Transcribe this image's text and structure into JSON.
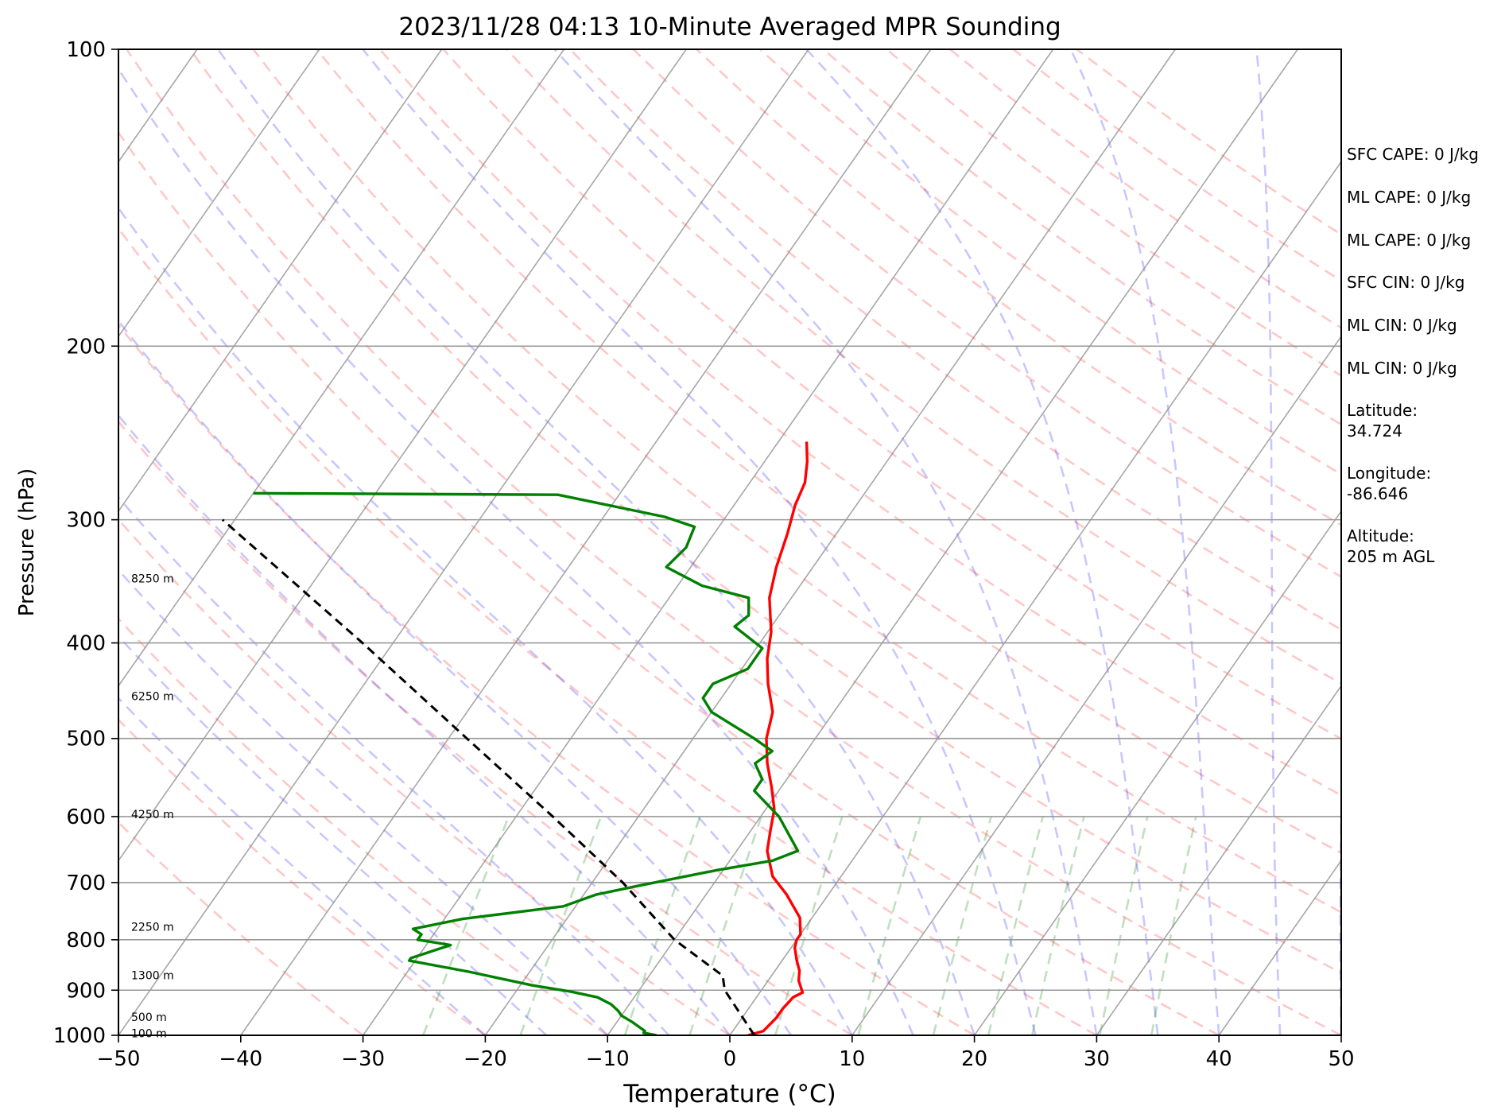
{
  "chart_data": {
    "type": "line",
    "title": "2023/11/28 04:13 10-Minute Averaged MPR Sounding",
    "xlabel": "Temperature (°C)",
    "ylabel": "Pressure (hPa)",
    "xlim": [
      -50,
      50
    ],
    "ylim": [
      1000,
      100
    ],
    "y_scale": "log",
    "x_ticks": [
      "−50",
      "−40",
      "−30",
      "−20",
      "−10",
      "0",
      "10",
      "20",
      "30",
      "40",
      "50"
    ],
    "y_ticks": [
      "100",
      "200",
      "300",
      "400",
      "500",
      "600",
      "700",
      "800",
      "900",
      "1000"
    ],
    "grid": true,
    "skew": true,
    "height_labels": [
      {
        "text": "8250 m",
        "p": 344
      },
      {
        "text": "6250 m",
        "p": 453
      },
      {
        "text": "4250 m",
        "p": 597
      },
      {
        "text": "2250 m",
        "p": 776
      },
      {
        "text": "1300 m",
        "p": 869
      },
      {
        "text": "500 m",
        "p": 958
      },
      {
        "text": "100 m",
        "p": 995
      }
    ],
    "series": [
      {
        "color": "#ff0000",
        "points": [
          [
            1000,
            1.5
          ],
          [
            990,
            2.5
          ],
          [
            960,
            2.8
          ],
          [
            940,
            2.8
          ],
          [
            915,
            3.0
          ],
          [
            905,
            3.5
          ],
          [
            880,
            2.5
          ],
          [
            860,
            2.0
          ],
          [
            840,
            1.2
          ],
          [
            815,
            0.3
          ],
          [
            800,
            0.0
          ],
          [
            790,
            0.0
          ],
          [
            760,
            -1.0
          ],
          [
            720,
            -3.4
          ],
          [
            690,
            -5.6
          ],
          [
            650,
            -7.5
          ],
          [
            620,
            -8.4
          ],
          [
            590,
            -9.3
          ],
          [
            560,
            -10.8
          ],
          [
            530,
            -12.5
          ],
          [
            500,
            -14.0
          ],
          [
            470,
            -15.0
          ],
          [
            440,
            -17.0
          ],
          [
            415,
            -18.5
          ],
          [
            390,
            -19.7
          ],
          [
            360,
            -21.8
          ],
          [
            335,
            -23.0
          ],
          [
            310,
            -24.0
          ],
          [
            290,
            -25.0
          ],
          [
            275,
            -25.5
          ],
          [
            262,
            -26.5
          ],
          [
            250,
            -27.7
          ]
        ]
      },
      {
        "color": "#008000",
        "points": [
          [
            1000,
            -6.0
          ],
          [
            994,
            -7.2
          ],
          [
            990,
            -7.2
          ],
          [
            970,
            -8.7
          ],
          [
            955,
            -10.0
          ],
          [
            945,
            -10.5
          ],
          [
            930,
            -11.5
          ],
          [
            915,
            -13.0
          ],
          [
            903,
            -15.5
          ],
          [
            890,
            -19.0
          ],
          [
            862,
            -25.0
          ],
          [
            840,
            -30.5
          ],
          [
            835,
            -30.5
          ],
          [
            810,
            -28.0
          ],
          [
            800,
            -31.0
          ],
          [
            790,
            -31.0
          ],
          [
            780,
            -32.0
          ],
          [
            762,
            -28.5
          ],
          [
            740,
            -21.0
          ],
          [
            720,
            -19.0
          ],
          [
            705,
            -16.0
          ],
          [
            680,
            -10.5
          ],
          [
            665,
            -6.5
          ],
          [
            650,
            -5.0
          ],
          [
            600,
            -8.5
          ],
          [
            565,
            -12.0
          ],
          [
            550,
            -12.0
          ],
          [
            530,
            -13.5
          ],
          [
            515,
            -12.8
          ],
          [
            500,
            -15.0
          ],
          [
            470,
            -20.0
          ],
          [
            455,
            -21.5
          ],
          [
            440,
            -21.5
          ],
          [
            425,
            -19.5
          ],
          [
            405,
            -19.5
          ],
          [
            385,
            -23.0
          ],
          [
            375,
            -22.5
          ],
          [
            360,
            -23.5
          ],
          [
            350,
            -28.0
          ],
          [
            335,
            -32.0
          ],
          [
            320,
            -31.5
          ],
          [
            305,
            -32.0
          ],
          [
            298,
            -35.0
          ],
          [
            283,
            -45.0
          ],
          [
            282,
            -70.0
          ]
        ]
      },
      {
        "color": "#000000",
        "dashed": true,
        "points": [
          [
            1000,
            2.0
          ],
          [
            900,
            -3.0
          ],
          [
            870,
            -4.0
          ],
          [
            800,
            -10.0
          ],
          [
            700,
            -17.5
          ],
          [
            600,
            -27.0
          ],
          [
            500,
            -38.5
          ],
          [
            400,
            -52.5
          ],
          [
            300,
            -71.0
          ]
        ]
      }
    ],
    "annotations": [
      {
        "text": "SFC CAPE: 0 J/kg"
      },
      {
        "text": "ML CAPE: 0 J/kg"
      },
      {
        "text": "ML CAPE: 0 J/kg"
      },
      {
        "text": "SFC CIN: 0 J/kg"
      },
      {
        "text": "ML CIN: 0 J/kg"
      },
      {
        "text": "ML CIN: 0 J/kg"
      },
      {
        "text": "Latitude:\n34.724"
      },
      {
        "text": "Longitude:\n-86.646"
      },
      {
        "text": "Altitude:\n205 m AGL"
      }
    ]
  }
}
